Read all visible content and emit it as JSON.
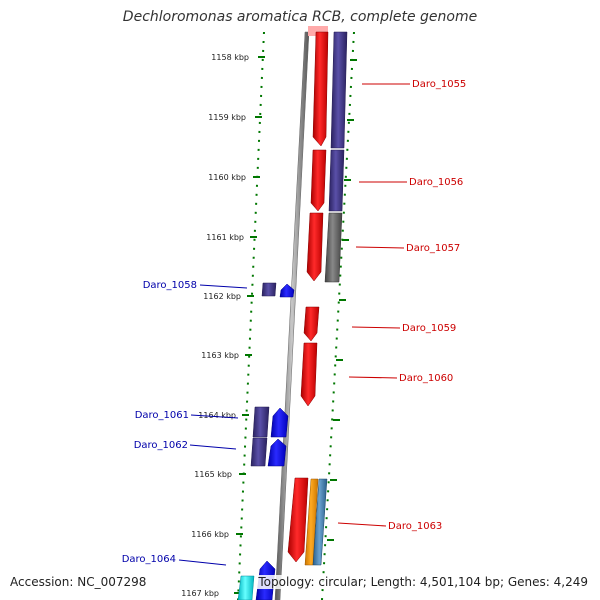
{
  "title": "Dechloromonas aromatica RCB, complete genome",
  "ticks": [
    "1158 kbp",
    "1159 kbp",
    "1160 kbp",
    "1161 kbp",
    "1162 kbp",
    "1163 kbp",
    "1164 kbp",
    "1165 kbp",
    "1166 kbp",
    "1167 kbp"
  ],
  "genes_right": [
    "Daro_1055",
    "Daro_1056",
    "Daro_1057",
    "Daro_1059",
    "Daro_1060",
    "Daro_1063"
  ],
  "genes_left": [
    "Daro_1058",
    "Daro_1061",
    "Daro_1062",
    "Daro_1064"
  ],
  "colors": {
    "red": "#ff0000",
    "blue": "#0000ff",
    "navy": "#3d3580",
    "grey": "#666666",
    "orange": "#ff9900",
    "steel": "#4682b4",
    "cyan": "#00e5ee",
    "tick": "#007700",
    "label_right": "#cc0000",
    "label_left": "#0000aa"
  },
  "footer": {
    "accession": "Accession: NC_007298",
    "stats": "Topology: circular; Length: 4,501,104 bp; Genes: 4,249"
  }
}
